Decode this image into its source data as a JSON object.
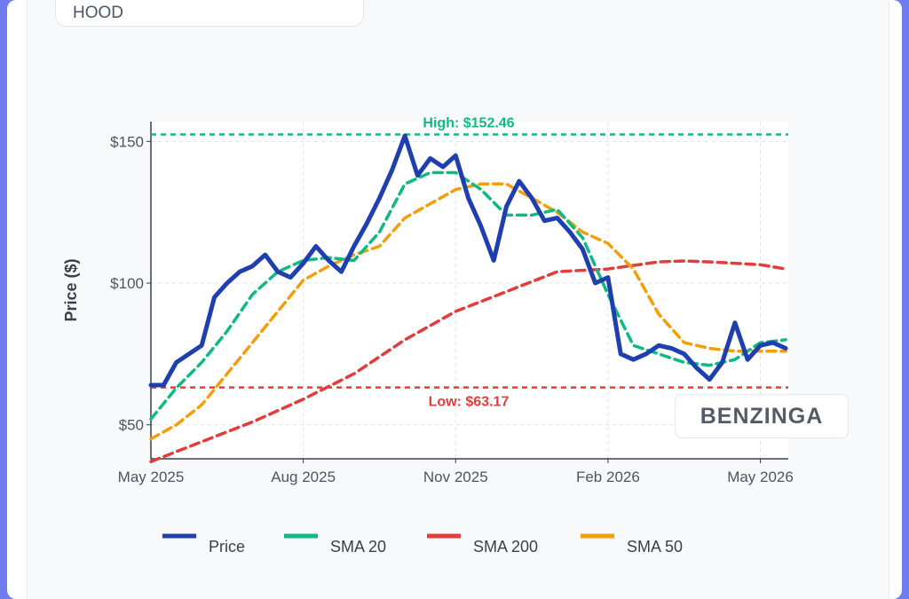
{
  "header": {
    "ticker": "HOOD"
  },
  "watermark": "BENZINGA",
  "colors": {
    "price": "#1f3fae",
    "sma20": "#10b981",
    "sma200": "#e23d3d",
    "sma50": "#f59e0b",
    "high": "#10b981",
    "low": "#e23d3d"
  },
  "chart_data": {
    "type": "line",
    "ylabel": "Price ($)",
    "xlabel": "",
    "y_ticks": [
      {
        "value": 50,
        "label": "$50"
      },
      {
        "value": 100,
        "label": "$100"
      },
      {
        "value": 150,
        "label": "$150"
      }
    ],
    "x_ticks": [
      {
        "value": 0,
        "label": "May 2025"
      },
      {
        "value": 3,
        "label": "Aug 2025"
      },
      {
        "value": 6,
        "label": "Nov 2025"
      },
      {
        "value": 9,
        "label": "Feb 2026"
      },
      {
        "value": 12,
        "label": "May 2026"
      }
    ],
    "xlim": [
      0,
      12.55
    ],
    "ylim": [
      38,
      157
    ],
    "grid": true,
    "legend_position": "bottom",
    "annotations": [
      {
        "name": "high",
        "label": "High: $152.46",
        "value": 152.46
      },
      {
        "name": "low",
        "label": "Low: $63.17",
        "value": 63.17
      }
    ],
    "series": [
      {
        "name": "Price",
        "x": [
          0,
          0.25,
          0.5,
          0.75,
          1,
          1.25,
          1.5,
          1.75,
          2,
          2.25,
          2.5,
          2.75,
          3,
          3.25,
          3.5,
          3.75,
          4,
          4.25,
          4.5,
          4.75,
          5,
          5.25,
          5.5,
          5.75,
          6,
          6.25,
          6.5,
          6.75,
          7,
          7.25,
          7.5,
          7.75,
          8,
          8.25,
          8.5,
          8.75,
          9,
          9.25,
          9.5,
          9.75,
          10,
          10.25,
          10.5,
          10.75,
          11,
          11.25,
          11.5,
          11.75,
          12,
          12.25,
          12.5
        ],
        "y": [
          64,
          64,
          72,
          75,
          78,
          95,
          100,
          104,
          106,
          110,
          104,
          102,
          107,
          113,
          108,
          104,
          113,
          121,
          130,
          140,
          152,
          138,
          144,
          141,
          145,
          130,
          120,
          108,
          127,
          136,
          130,
          122,
          123,
          118,
          112,
          100,
          102,
          75,
          73,
          75,
          78,
          77,
          75,
          70,
          66,
          72,
          86,
          73,
          78,
          79,
          77
        ]
      },
      {
        "name": "SMA 20",
        "x": [
          0,
          0.5,
          1,
          1.5,
          2,
          2.5,
          3,
          3.5,
          4,
          4.5,
          5,
          5.5,
          6,
          6.5,
          7,
          7.5,
          8,
          8.5,
          9,
          9.5,
          10,
          10.5,
          11,
          11.5,
          12,
          12.5
        ],
        "y": [
          52,
          63,
          72,
          83,
          96,
          104,
          108,
          109,
          108,
          118,
          135,
          139,
          139,
          133,
          124,
          124,
          126,
          116,
          96,
          78,
          75,
          72,
          71,
          73,
          79,
          80
        ]
      },
      {
        "name": "SMA 200",
        "x": [
          0,
          1,
          2,
          3,
          4,
          5,
          6,
          7,
          8,
          9,
          10,
          10.5,
          11,
          11.5,
          12,
          12.5
        ],
        "y": [
          37,
          44,
          51,
          59,
          68,
          80,
          90,
          97,
          104,
          105,
          107.5,
          107.8,
          107.5,
          107,
          106.5,
          105
        ]
      },
      {
        "name": "SMA 50",
        "x": [
          0,
          0.5,
          1,
          1.5,
          2,
          2.5,
          3,
          3.5,
          4,
          4.5,
          5,
          5.5,
          6,
          6.5,
          7,
          7.5,
          8,
          8.5,
          9,
          9.5,
          10,
          10.5,
          11,
          11.5,
          12,
          12.5
        ],
        "y": [
          45,
          50,
          57,
          68,
          79,
          90,
          101,
          106,
          110,
          113,
          123,
          128,
          133,
          135,
          135,
          130,
          125,
          118,
          114,
          105,
          89,
          79,
          77,
          76,
          76,
          76
        ]
      }
    ]
  }
}
